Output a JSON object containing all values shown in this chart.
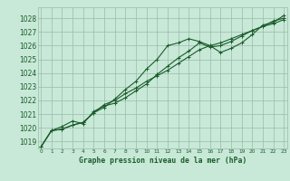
{
  "title": "Graphe pression niveau de la mer (hPa)",
  "xlabel_ticks": [
    0,
    1,
    2,
    3,
    4,
    5,
    6,
    7,
    8,
    9,
    10,
    11,
    12,
    13,
    14,
    15,
    16,
    17,
    18,
    19,
    20,
    21,
    22,
    23
  ],
  "ylim": [
    1018.5,
    1028.8
  ],
  "xlim": [
    -0.3,
    23.3
  ],
  "yticks": [
    1019,
    1020,
    1021,
    1022,
    1023,
    1024,
    1025,
    1026,
    1027,
    1028
  ],
  "bg_color": "#c8e8d8",
  "grid_color": "#99bbaa",
  "line_color": "#1a5c2a",
  "line1": [
    1018.6,
    1019.8,
    1019.9,
    1020.2,
    1020.4,
    1021.1,
    1021.5,
    1022.1,
    1022.8,
    1023.4,
    1024.3,
    1025.0,
    1026.0,
    1026.2,
    1026.5,
    1026.3,
    1026.0,
    1025.5,
    1025.8,
    1026.2,
    1026.8,
    1027.5,
    1027.7,
    1028.2
  ],
  "line2": [
    1018.6,
    1019.8,
    1020.1,
    1020.5,
    1020.3,
    1021.2,
    1021.6,
    1021.8,
    1022.2,
    1022.7,
    1023.2,
    1023.9,
    1024.5,
    1025.1,
    1025.6,
    1026.2,
    1025.9,
    1026.0,
    1026.3,
    1026.7,
    1027.1,
    1027.4,
    1027.8,
    1028.0
  ],
  "line3": [
    1018.6,
    1019.8,
    1019.9,
    1020.2,
    1020.4,
    1021.1,
    1021.7,
    1022.0,
    1022.5,
    1022.9,
    1023.4,
    1023.8,
    1024.2,
    1024.7,
    1025.2,
    1025.7,
    1026.0,
    1026.2,
    1026.5,
    1026.8,
    1027.1,
    1027.4,
    1027.6,
    1027.9
  ],
  "ytick_fontsize": 5.5,
  "xtick_fontsize": 4.2,
  "title_fontsize": 5.8,
  "lw": 0.8,
  "marker_size": 2.5
}
